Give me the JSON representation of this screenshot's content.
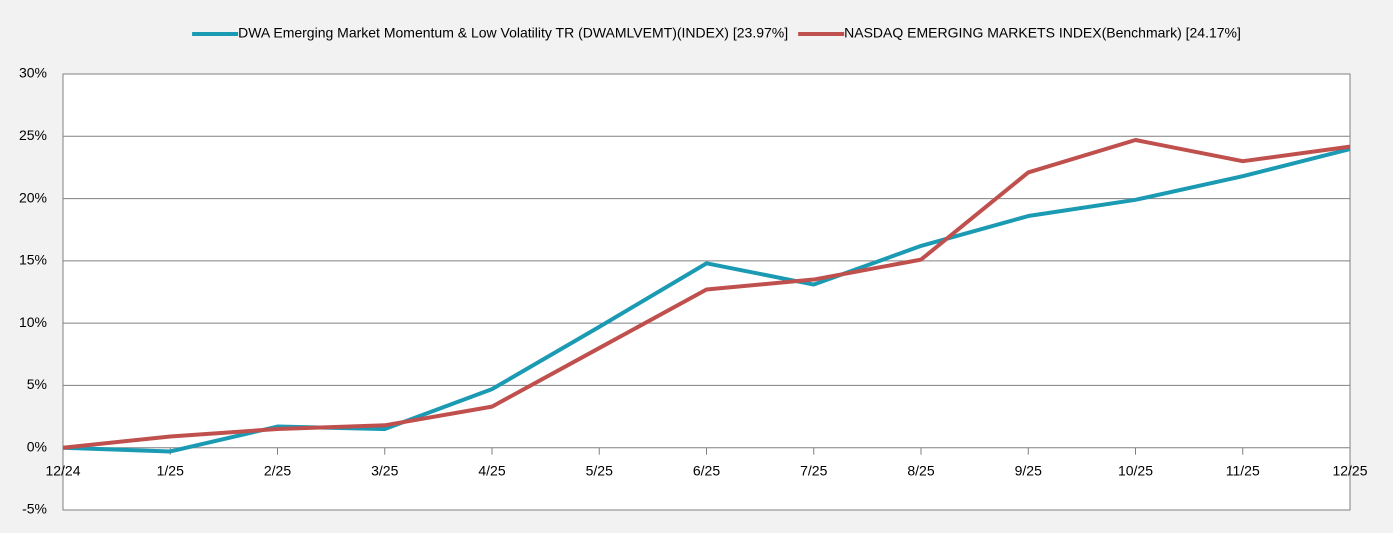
{
  "chart_data": {
    "type": "line",
    "categories": [
      "12/24",
      "1/25",
      "2/25",
      "3/25",
      "4/25",
      "5/25",
      "6/25",
      "7/25",
      "8/25",
      "9/25",
      "10/25",
      "11/25",
      "12/25"
    ],
    "series": [
      {
        "name": "DWA Emerging Market Momentum & Low Volatility TR (DWAMLVEMT)(INDEX) [23.97%]",
        "color": "#1b9ab3",
        "values": [
          0,
          -0.3,
          1.7,
          1.5,
          4.7,
          9.7,
          14.8,
          13.1,
          16.2,
          18.6,
          19.9,
          21.8,
          23.97
        ]
      },
      {
        "name": "NASDAQ EMERGING MARKETS INDEX(Benchmark) [24.17%]",
        "color": "#c0504d",
        "values": [
          0,
          0.9,
          1.5,
          1.8,
          3.3,
          8.0,
          12.7,
          13.5,
          15.1,
          22.1,
          24.7,
          23.0,
          24.17
        ]
      }
    ],
    "ylim": [
      -5,
      30
    ],
    "yticks": [
      {
        "value": -5,
        "label": "-5%"
      },
      {
        "value": 0,
        "label": "0%"
      },
      {
        "value": 5,
        "label": "5%"
      },
      {
        "value": 10,
        "label": "10%"
      },
      {
        "value": 15,
        "label": "15%"
      },
      {
        "value": 20,
        "label": "20%"
      },
      {
        "value": 25,
        "label": "25%"
      },
      {
        "value": 30,
        "label": "30%"
      }
    ],
    "grid": true,
    "legend": "top"
  }
}
